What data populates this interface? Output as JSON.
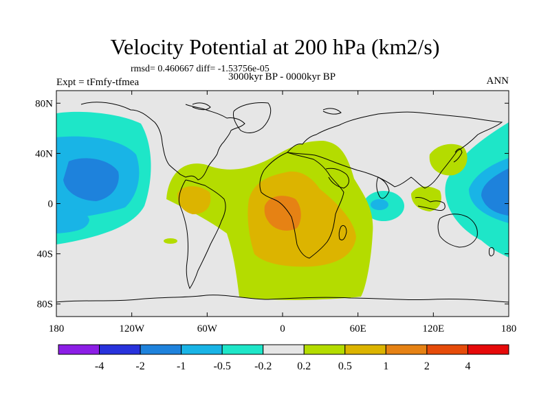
{
  "title": "Velocity Potential at 200 hPa (km2/s)",
  "stats": "rmsd= 0.460667 diff= -1.53756e-05",
  "subtitle": "3000kyr BP - 0000kyr BP",
  "experiment": "Expt = tFmfy-tfmea",
  "season": "ANN",
  "map": {
    "projection": "cylindrical equidistant",
    "lon_range": [
      -180,
      180
    ],
    "lat_range": [
      -90,
      90
    ],
    "x_ticks": [
      {
        "value": -180,
        "label": "180"
      },
      {
        "value": -120,
        "label": "120W"
      },
      {
        "value": -60,
        "label": "60W"
      },
      {
        "value": 0,
        "label": "0"
      },
      {
        "value": 60,
        "label": "60E"
      },
      {
        "value": 120,
        "label": "120E"
      },
      {
        "value": 180,
        "label": "180"
      }
    ],
    "y_ticks": [
      {
        "value": 80,
        "label": "80N"
      },
      {
        "value": 40,
        "label": "40N"
      },
      {
        "value": 0,
        "label": "0"
      },
      {
        "value": -40,
        "label": "40S"
      },
      {
        "value": -80,
        "label": "80S"
      }
    ],
    "background_color": "#e6e6e6",
    "coastline_color": "#000000",
    "colorbar": {
      "labels": [
        "-4",
        "-2",
        "-1",
        "-0.5",
        "-0.2",
        "0.2",
        "0.5",
        "1",
        "2",
        "4"
      ],
      "colors": [
        "#8c1ee6",
        "#2832dc",
        "#1e82dc",
        "#19b4e6",
        "#1ee6c8",
        "#e6e6e6",
        "#b4dc00",
        "#dcb400",
        "#e68214",
        "#e64b0a",
        "#e60a0a"
      ]
    },
    "anomaly_regions": [
      {
        "name": "North Pacific low",
        "center": [
          -155,
          15
        ],
        "level": "-1"
      },
      {
        "name": "West Pacific low",
        "center": [
          165,
          5
        ],
        "level": "-1"
      },
      {
        "name": "Indian Ocean low",
        "center": [
          80,
          0
        ],
        "level": "-0.5"
      },
      {
        "name": "Atlantic-Africa high",
        "center": [
          5,
          -5
        ],
        "level": "1"
      },
      {
        "name": "East Asia high",
        "center": [
          120,
          35
        ],
        "level": "0.2"
      }
    ]
  }
}
